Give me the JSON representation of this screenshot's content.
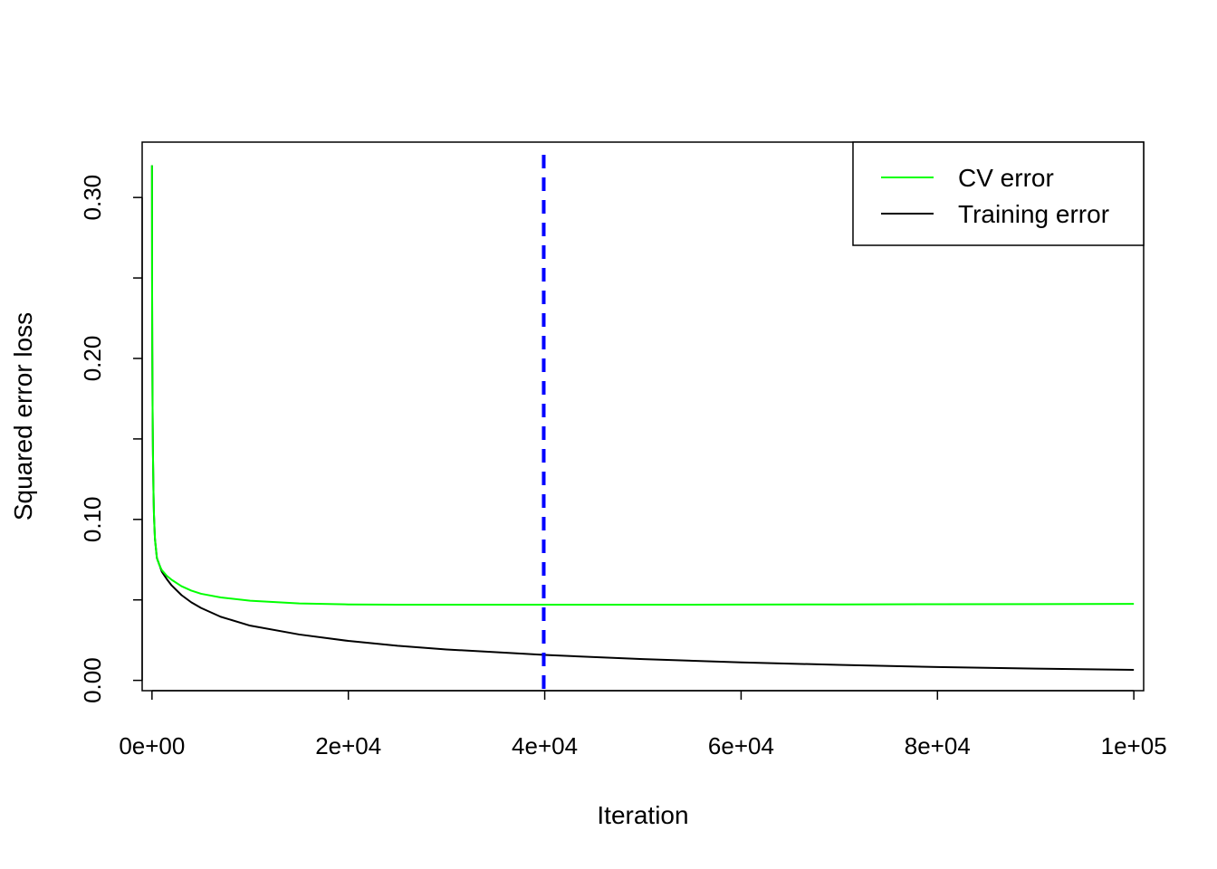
{
  "chart_data": {
    "type": "line",
    "title": "",
    "xlabel": "Iteration",
    "ylabel": "Squared error loss",
    "xlim": [
      -1000,
      101000
    ],
    "ylim": [
      -0.0064,
      0.3344
    ],
    "x_ticks": [
      0,
      20000,
      40000,
      60000,
      80000,
      100000
    ],
    "x_tick_labels": [
      "0e+00",
      "2e+04",
      "4e+04",
      "6e+04",
      "8e+04",
      "1e+05"
    ],
    "y_ticks": [
      0.0,
      0.05,
      0.1,
      0.15,
      0.2,
      0.25,
      0.3
    ],
    "y_tick_labels": [
      "0.00",
      "",
      "0.10",
      "",
      "0.20",
      "",
      "0.30"
    ],
    "grid": false,
    "legend_position": "top-right",
    "series": [
      {
        "name": "CV error",
        "color": "#00ff00",
        "x": [
          0,
          10,
          30,
          60,
          100,
          150,
          200,
          300,
          500,
          800,
          1000,
          1500,
          2000,
          3000,
          4000,
          5000,
          7000,
          10000,
          15000,
          20000,
          25000,
          30000,
          40000,
          50000,
          60000,
          70000,
          80000,
          90000,
          100000
        ],
        "y": [
          0.32,
          0.25,
          0.205,
          0.17,
          0.14,
          0.118,
          0.103,
          0.088,
          0.076,
          0.071,
          0.0685,
          0.065,
          0.0625,
          0.0585,
          0.0558,
          0.0538,
          0.0515,
          0.0495,
          0.0478,
          0.0472,
          0.047,
          0.047,
          0.047,
          0.047,
          0.0471,
          0.0472,
          0.0473,
          0.0474,
          0.0475
        ]
      },
      {
        "name": "Training error",
        "color": "#000000",
        "x": [
          0,
          10,
          30,
          60,
          100,
          150,
          200,
          300,
          500,
          800,
          1000,
          1500,
          2000,
          3000,
          4000,
          5000,
          7000,
          10000,
          15000,
          20000,
          25000,
          30000,
          40000,
          50000,
          60000,
          70000,
          80000,
          90000,
          100000
        ],
        "y": [
          0.32,
          0.25,
          0.205,
          0.17,
          0.14,
          0.118,
          0.103,
          0.088,
          0.076,
          0.071,
          0.0675,
          0.063,
          0.059,
          0.053,
          0.0485,
          0.045,
          0.0395,
          0.034,
          0.0285,
          0.0245,
          0.0215,
          0.0192,
          0.0158,
          0.0132,
          0.0112,
          0.0096,
          0.0083,
          0.0073,
          0.0065
        ]
      }
    ],
    "reference_lines": [
      {
        "orientation": "vertical",
        "x": 39900,
        "color": "#0000ff",
        "style": "dashed"
      }
    ]
  }
}
